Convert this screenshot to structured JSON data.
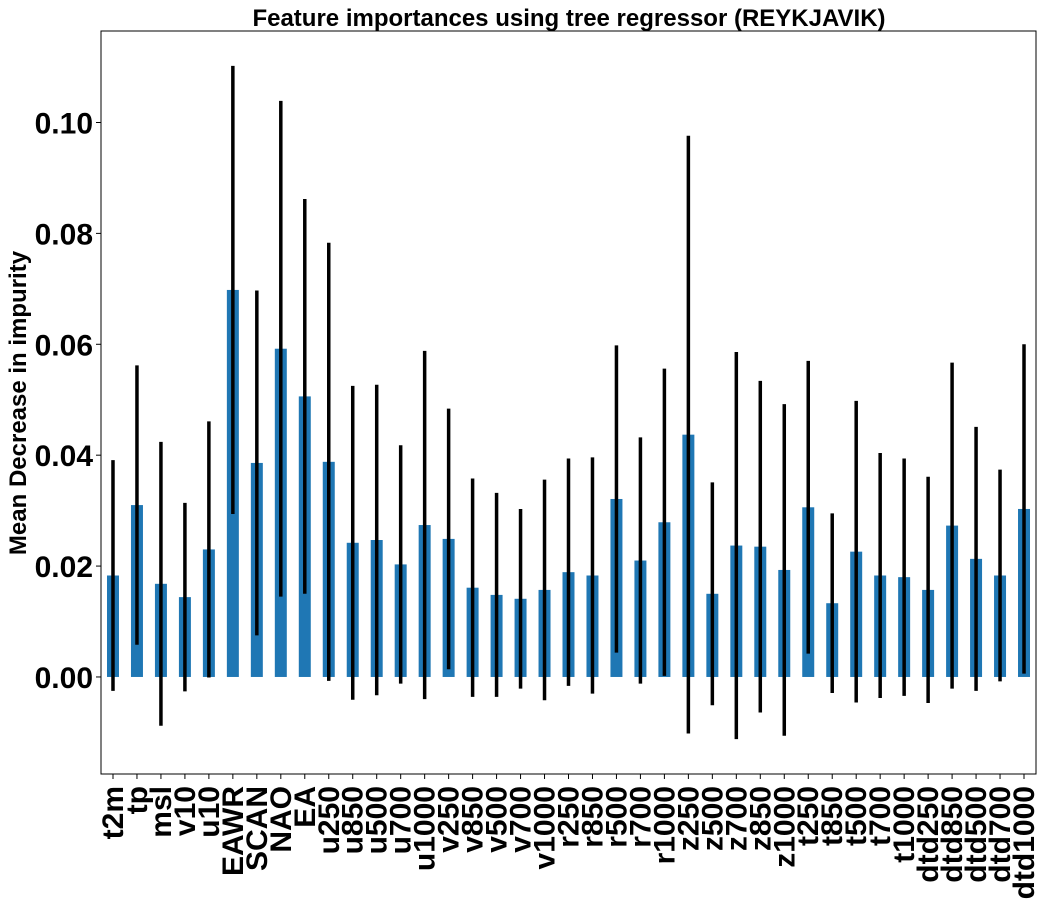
{
  "chart_data": {
    "type": "bar",
    "title": "Feature importances using tree regressor (REYKJAVIK)",
    "xlabel": "",
    "ylabel": "Mean Decrease in impurity",
    "ylim": [
      -0.0175,
      0.1165
    ],
    "yticks": [
      "0.00",
      "0.02",
      "0.04",
      "0.06",
      "0.08",
      "0.10"
    ],
    "ytick_values": [
      0.0,
      0.02,
      0.04,
      0.06,
      0.08,
      0.1
    ],
    "bar_color": "#1f77b4",
    "error_color": "#000000",
    "grid": false,
    "categories": [
      "t2m",
      "tp",
      "msl",
      "v10",
      "u10",
      "EAWR",
      "SCAN",
      "NAO",
      "EA",
      "u250",
      "u850",
      "u500",
      "u700",
      "u1000",
      "v250",
      "v850",
      "v500",
      "v700",
      "v1000",
      "r250",
      "r850",
      "r500",
      "r700",
      "r1000",
      "z250",
      "z500",
      "z700",
      "z850",
      "z1000",
      "t250",
      "t850",
      "t500",
      "t700",
      "t1000",
      "dtd250",
      "dtd850",
      "dtd500",
      "dtd700",
      "dtd1000"
    ],
    "values": [
      0.0183,
      0.031,
      0.0168,
      0.0144,
      0.023,
      0.0698,
      0.0386,
      0.0592,
      0.0506,
      0.0388,
      0.0242,
      0.0247,
      0.0203,
      0.0274,
      0.0249,
      0.0161,
      0.0148,
      0.0141,
      0.0157,
      0.0189,
      0.0183,
      0.0321,
      0.021,
      0.0279,
      0.0437,
      0.015,
      0.0237,
      0.0235,
      0.0193,
      0.0306,
      0.0133,
      0.0226,
      0.0183,
      0.018,
      0.0157,
      0.0273,
      0.0213,
      0.0183,
      0.0303
    ],
    "errors": [
      0.0208,
      0.0252,
      0.0256,
      0.017,
      0.0231,
      0.0404,
      0.0311,
      0.0447,
      0.0356,
      0.0395,
      0.0283,
      0.028,
      0.0215,
      0.0314,
      0.0235,
      0.0197,
      0.0184,
      0.0162,
      0.0199,
      0.0205,
      0.0213,
      0.0277,
      0.0222,
      0.0277,
      0.0539,
      0.0201,
      0.0349,
      0.0299,
      0.0299,
      0.0264,
      0.0162,
      0.0272,
      0.0221,
      0.0214,
      0.0204,
      0.0294,
      0.0238,
      0.0191,
      0.0297
    ]
  }
}
